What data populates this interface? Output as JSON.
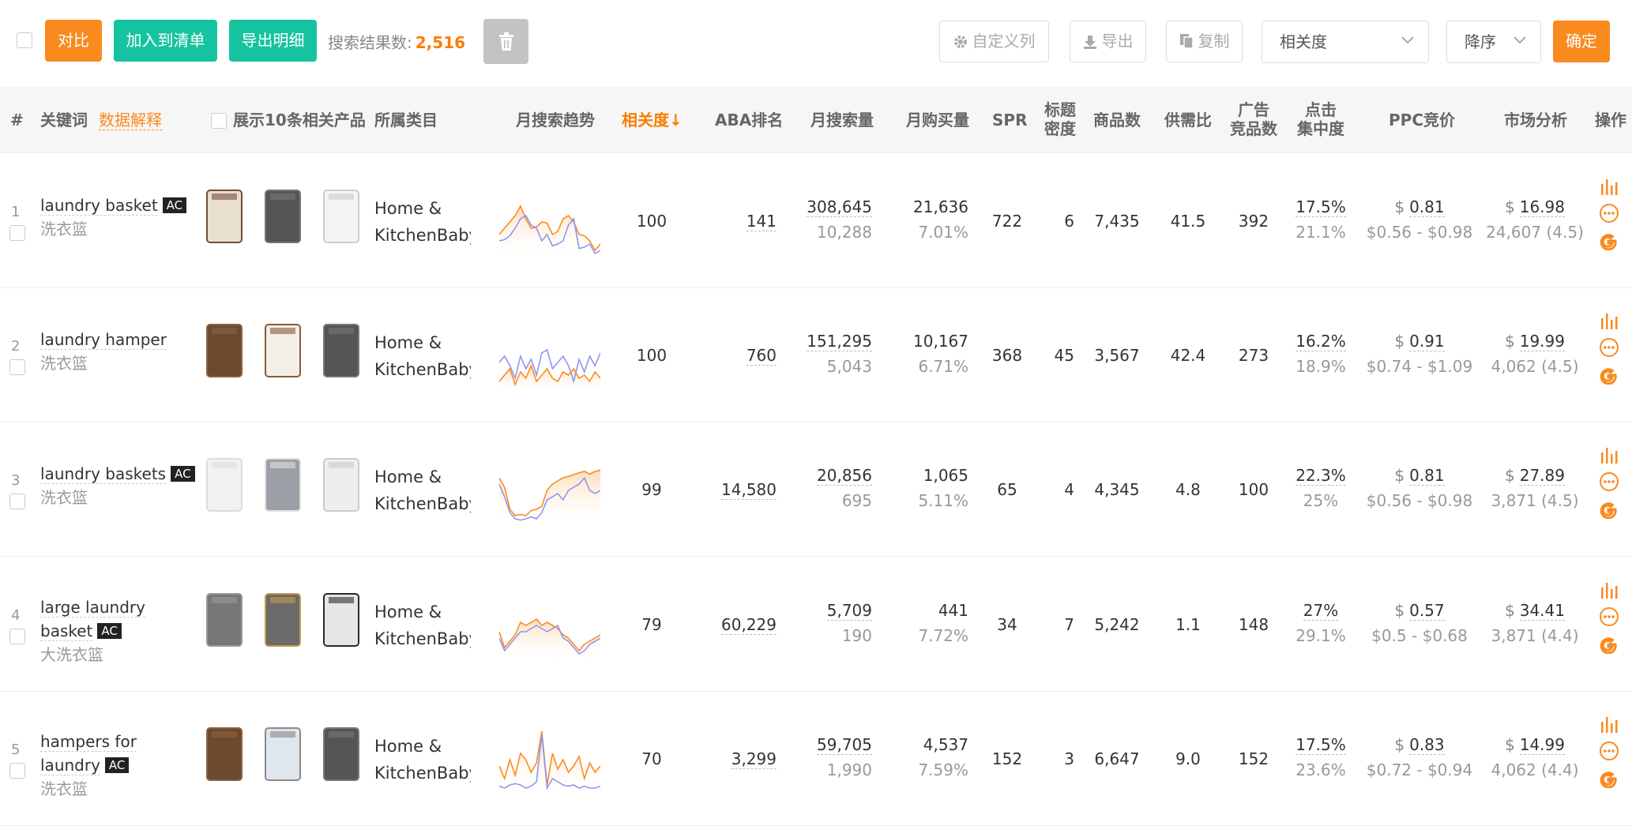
{
  "toolbar": {
    "compare": "对比",
    "add_to_list": "加入到清单",
    "export_detail": "导出明细",
    "result_label": "搜索结果数:",
    "result_count": "2,516",
    "custom_columns": "自定义列",
    "export": "导出",
    "copy": "复制",
    "sort_field": "相关度",
    "sort_order": "降序",
    "confirm": "确定"
  },
  "header": {
    "no": "#",
    "keyword": "关键词",
    "explain": "数据解释",
    "show_products": "展示10条相关产品",
    "category": "所属类目",
    "trend": "月搜索趋势",
    "relevance": "相关度↓",
    "aba_rank": "ABA排名",
    "monthly_search": "月搜索量",
    "monthly_purchase": "月购买量",
    "spr": "SPR",
    "title_density_1": "标题",
    "title_density_2": "密度",
    "products": "商品数",
    "supply_demand": "供需比",
    "ad_products_1": "广告",
    "ad_products_2": "竞品数",
    "click_conc_1": "点击",
    "click_conc_2": "集中度",
    "ppc": "PPC竞价",
    "market": "市场分析",
    "ops": "操作"
  },
  "rows": [
    {
      "no": "1",
      "kw": "laundry basket",
      "ac": "AC",
      "cn": "洗衣篮",
      "cat1": "Home &",
      "cat2": "KitchenBaby",
      "relevance": "100",
      "aba": "141",
      "search": "308,645",
      "search_sub": "10,288",
      "purchase": "21,636",
      "purchase_sub": "7.01%",
      "spr": "722",
      "density": "6",
      "products": "7,435",
      "sd": "41.5",
      "ad": "392",
      "click": "17.5%",
      "click_sub": "21.1%",
      "ppc": "0.81",
      "ppc_range": "$0.56 - $0.98",
      "price": "16.98",
      "price_sub": "24,607 (4.5)"
    },
    {
      "no": "2",
      "kw": "laundry hamper",
      "ac": "",
      "cn": "洗衣篮",
      "cat1": "Home &",
      "cat2": "KitchenBaby",
      "relevance": "100",
      "aba": "760",
      "search": "151,295",
      "search_sub": "5,043",
      "purchase": "10,167",
      "purchase_sub": "6.71%",
      "spr": "368",
      "density": "45",
      "products": "3,567",
      "sd": "42.4",
      "ad": "273",
      "click": "16.2%",
      "click_sub": "18.9%",
      "ppc": "0.91",
      "ppc_range": "$0.74 - $1.09",
      "price": "19.99",
      "price_sub": "4,062 (4.5)"
    },
    {
      "no": "3",
      "kw": "laundry baskets",
      "ac": "AC",
      "cn": "洗衣篮",
      "cat1": "Home &",
      "cat2": "KitchenBaby",
      "relevance": "99",
      "aba": "14,580",
      "search": "20,856",
      "search_sub": "695",
      "purchase": "1,065",
      "purchase_sub": "5.11%",
      "spr": "65",
      "density": "4",
      "products": "4,345",
      "sd": "4.8",
      "ad": "100",
      "click": "22.3%",
      "click_sub": "25%",
      "ppc": "0.81",
      "ppc_range": "$0.56 - $0.98",
      "price": "27.89",
      "price_sub": "3,871 (4.5)"
    },
    {
      "no": "4",
      "kw": "large laundry basket",
      "ac": "AC",
      "cn": "大洗衣篮",
      "cat1": "Home &",
      "cat2": "KitchenBaby",
      "relevance": "79",
      "aba": "60,229",
      "search": "5,709",
      "search_sub": "190",
      "purchase": "441",
      "purchase_sub": "7.72%",
      "spr": "34",
      "density": "7",
      "products": "5,242",
      "sd": "1.1",
      "ad": "148",
      "click": "27%",
      "click_sub": "29.1%",
      "ppc": "0.57",
      "ppc_range": "$0.5 - $0.68",
      "price": "34.41",
      "price_sub": "3,871 (4.4)"
    },
    {
      "no": "5",
      "kw": "hampers for laundry",
      "ac": "AC",
      "cn": "洗衣篮",
      "cat1": "Home &",
      "cat2": "KitchenBaby",
      "relevance": "70",
      "aba": "3,299",
      "search": "59,705",
      "search_sub": "1,990",
      "purchase": "4,537",
      "purchase_sub": "7.59%",
      "spr": "152",
      "density": "3",
      "products": "6,647",
      "sd": "9.0",
      "ad": "152",
      "click": "17.5%",
      "click_sub": "23.6%",
      "ppc": "0.83",
      "ppc_range": "$0.72 - $0.94",
      "price": "14.99",
      "price_sub": "4,062 (4.4)"
    }
  ],
  "currency": "$",
  "colors": {
    "accent": "#fa8a1e",
    "green": "#16c3a0",
    "trend_blue": "#8e96f0",
    "trend_orange": "#fa8a1e"
  }
}
